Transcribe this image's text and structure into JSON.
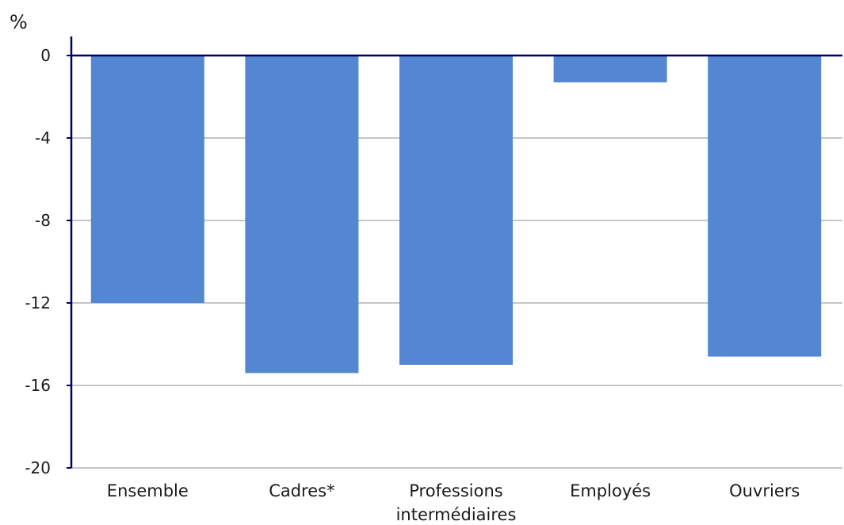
{
  "chart_data": {
    "type": "bar",
    "ylabel": "%",
    "categories": [
      [
        "Ensemble"
      ],
      [
        "Cadres*"
      ],
      [
        "Professions",
        "intermédiaires"
      ],
      [
        "Employés"
      ],
      [
        "Ouvriers"
      ]
    ],
    "values": [
      -12.0,
      -15.4,
      -15.0,
      -1.3,
      -14.6
    ],
    "ylim": [
      -20,
      0
    ],
    "yticks": [
      0,
      -4,
      -8,
      -12,
      -16,
      -20
    ],
    "grid": true,
    "legend": "none",
    "colors": {
      "bar": "#5387d2",
      "axis": "#000066",
      "grid": "#8c8c8c"
    }
  }
}
